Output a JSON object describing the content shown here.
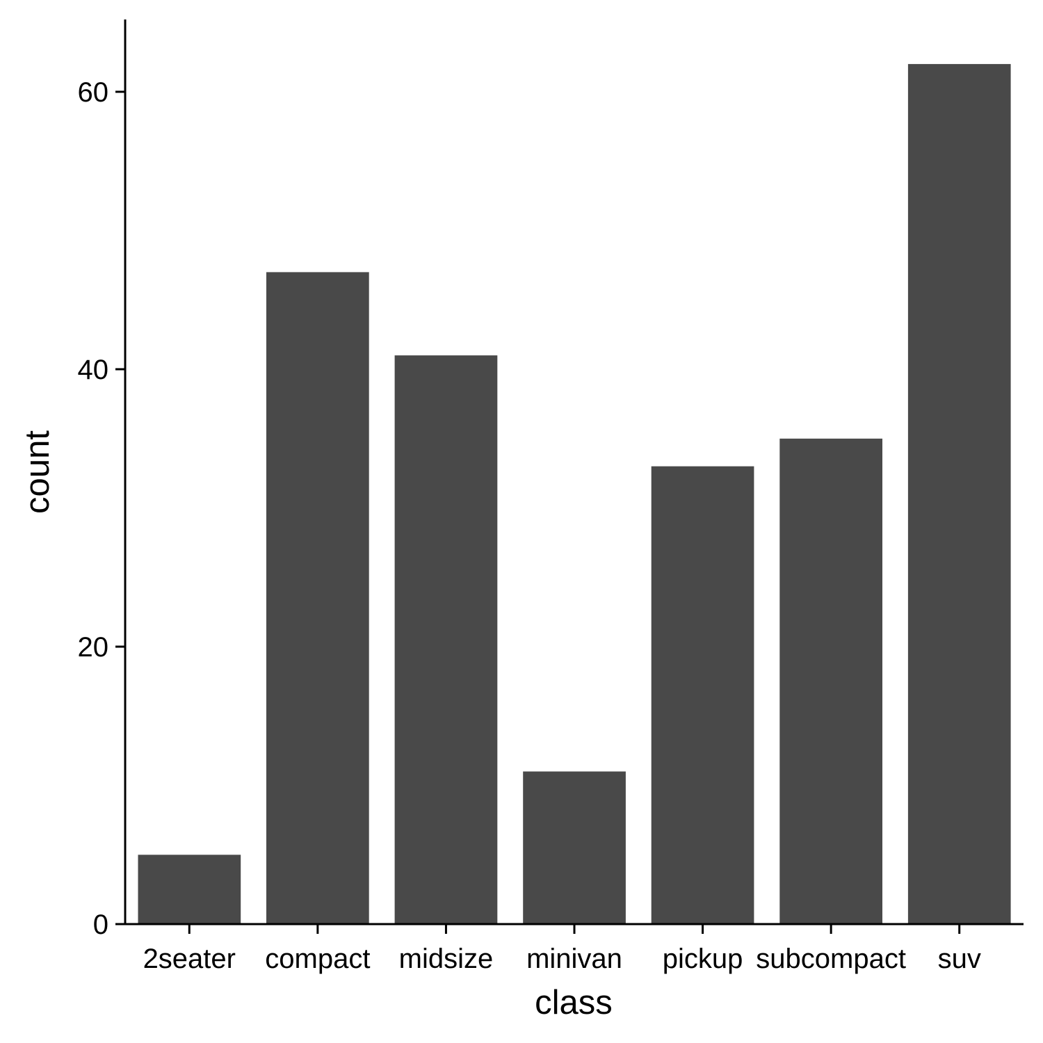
{
  "chart_data": {
    "type": "bar",
    "title": "",
    "xlabel": "class",
    "ylabel": "count",
    "categories": [
      "2seater",
      "compact",
      "midsize",
      "minivan",
      "pickup",
      "subcompact",
      "suv"
    ],
    "values": [
      5,
      47,
      41,
      11,
      33,
      35,
      62
    ],
    "ylim": [
      0,
      65
    ],
    "yticks": [
      0,
      20,
      40,
      60
    ],
    "ytick_labels": [
      "0",
      "20",
      "40",
      "60"
    ],
    "grid": false,
    "legend": "none",
    "bar_color": "#494949"
  }
}
